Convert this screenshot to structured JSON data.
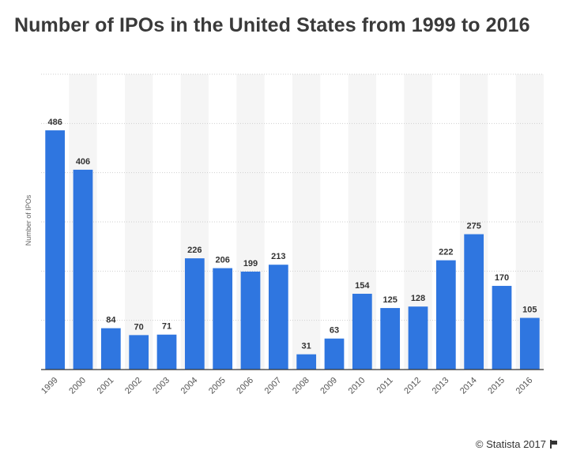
{
  "title": "Number of IPOs in the United States from 1999 to 2016",
  "footer": {
    "credit": "© Statista 2017"
  },
  "colors": {
    "bar": "#2f76e0",
    "grid": "#cfcfcf",
    "band": "#f5f5f5",
    "axis": "#333333",
    "label": "#333333"
  },
  "chart_data": {
    "type": "bar",
    "title": "Number of IPOs in the United States from 1999 to 2016",
    "xlabel": "",
    "ylabel": "Number of IPOs",
    "ylim": [
      0,
      600
    ],
    "grid": true,
    "yticks_visible": false,
    "categories": [
      "1999",
      "2000",
      "2001",
      "2002",
      "2003",
      "2004",
      "2005",
      "2006",
      "2007",
      "2008",
      "2009",
      "2010",
      "2011",
      "2012",
      "2013",
      "2014",
      "2015",
      "2016"
    ],
    "values": [
      486,
      406,
      84,
      70,
      71,
      226,
      206,
      199,
      213,
      31,
      63,
      154,
      125,
      128,
      222,
      275,
      170,
      105
    ],
    "data_labels": true
  }
}
